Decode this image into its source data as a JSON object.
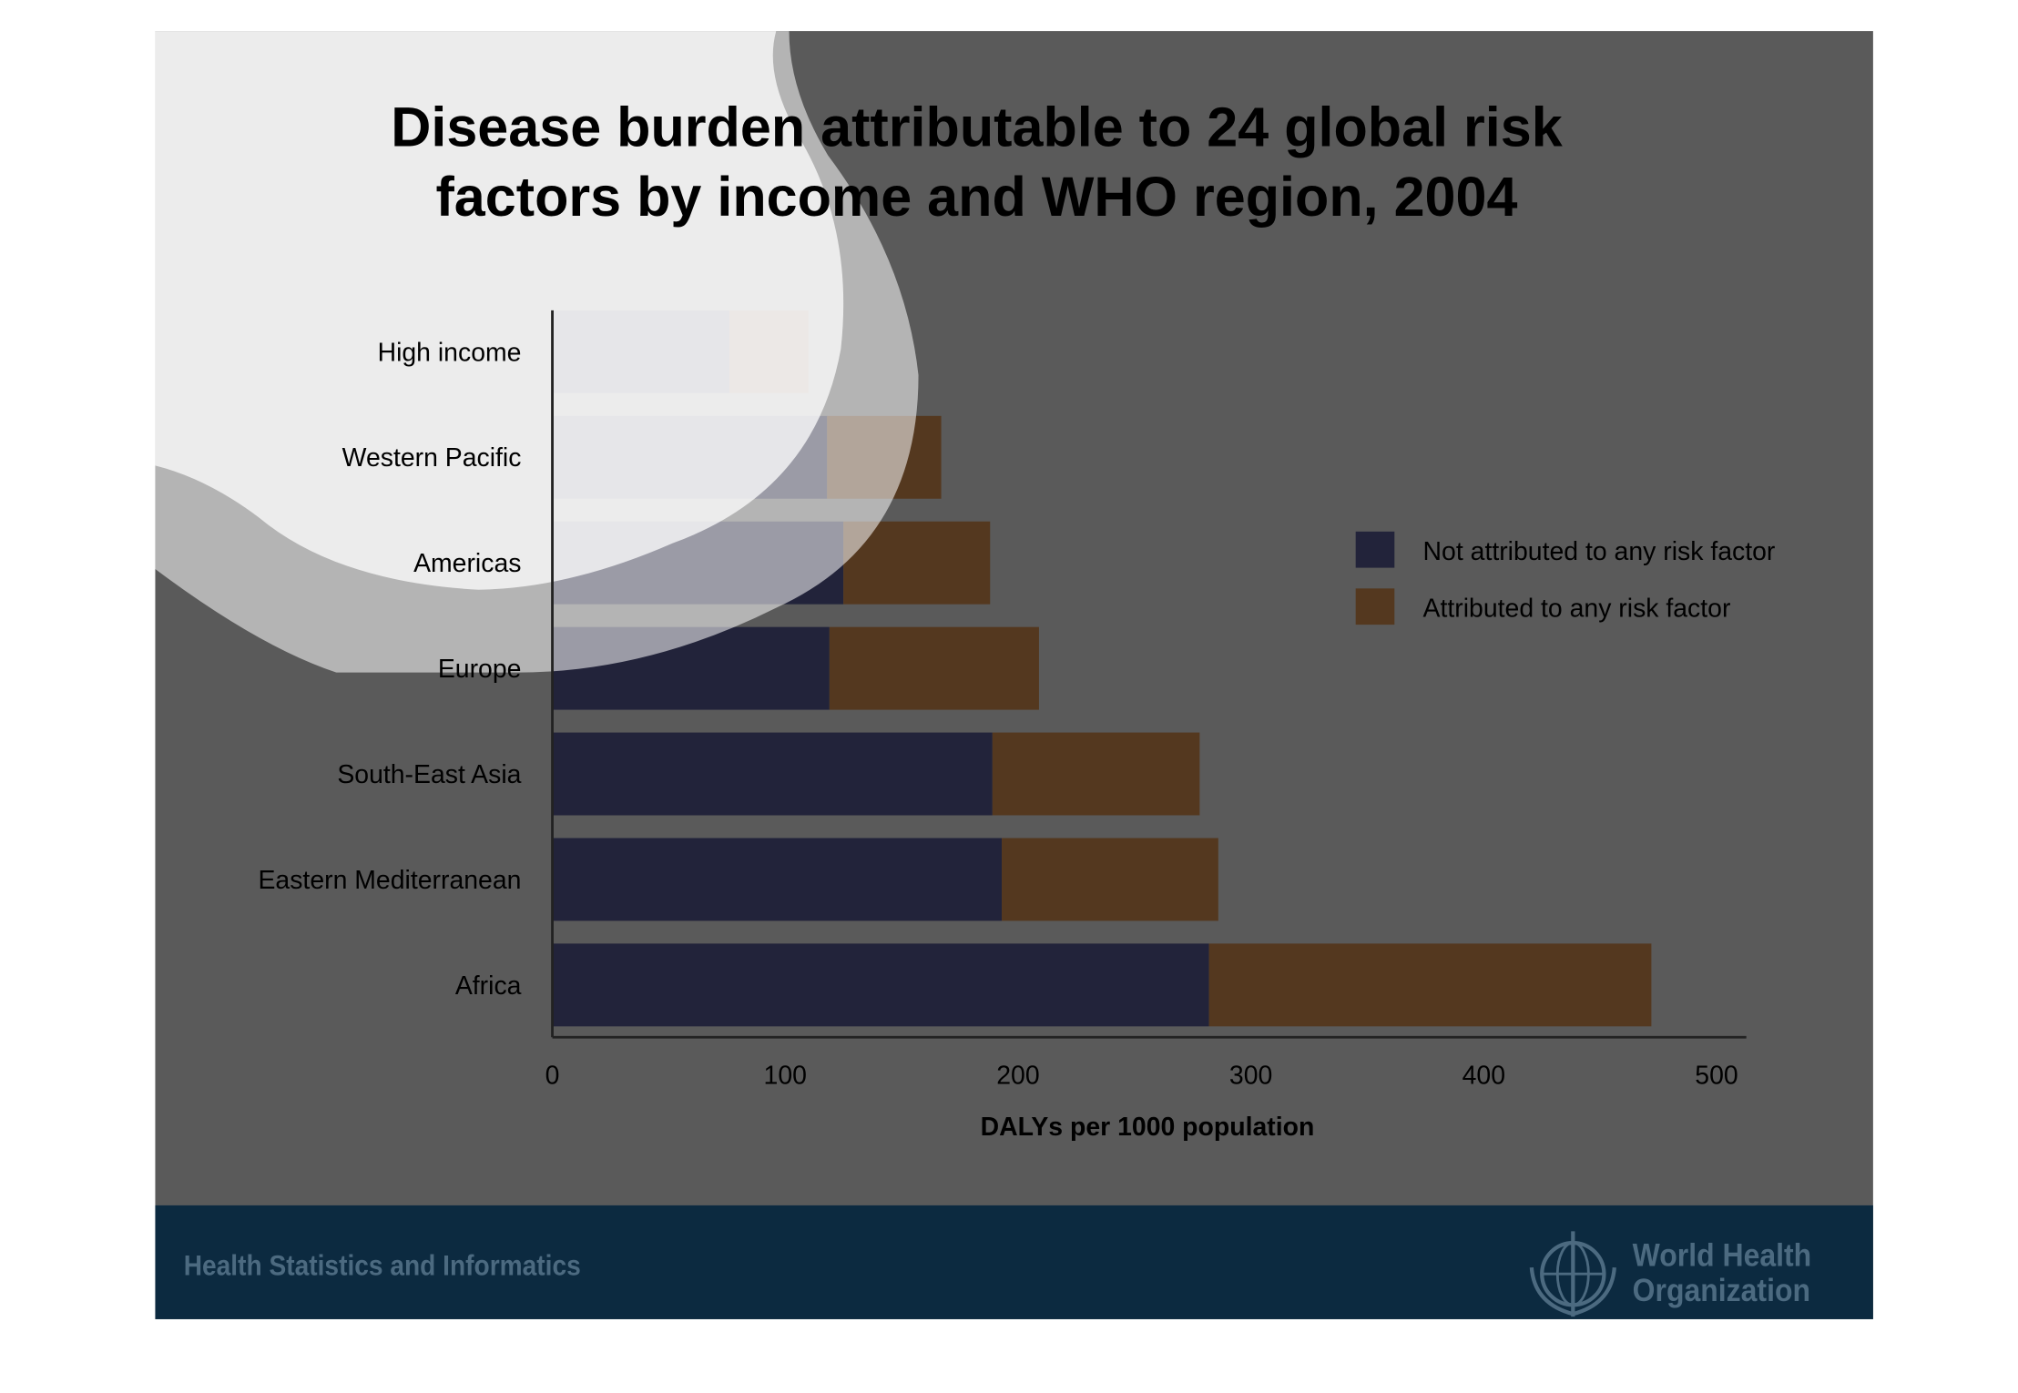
{
  "chart_data": {
    "type": "bar",
    "orientation": "horizontal",
    "stacked": true,
    "title": "Disease burden attributable to 24 global risk factors by income and WHO region, 2004",
    "title_lines": [
      "Disease burden attributable to 24 global risk",
      "factors by income and WHO region, 2004"
    ],
    "categories": [
      "High income",
      "Western Pacific",
      "Americas",
      "Europe",
      "South-East Asia",
      "Eastern Mediterranean",
      "Africa"
    ],
    "series": [
      {
        "name": "Not attributed to any risk factor",
        "color": "#22233a",
        "values": [
          76,
          118,
          125,
          119,
          189,
          193,
          282
        ]
      },
      {
        "name": "Attributed to any risk factor",
        "color": "#54381f",
        "values": [
          34,
          49,
          63,
          90,
          89,
          93,
          190
        ]
      }
    ],
    "xlabel": "DALYs per 1000 population",
    "ylabel": "",
    "xlim": [
      0,
      510
    ],
    "xticks": [
      "0",
      "100",
      "200",
      "300",
      "400",
      "500"
    ],
    "legend_position": "right",
    "grid": false
  },
  "footer": {
    "text": "Health Statistics and Informatics",
    "org_line1": "World Health",
    "org_line2": "Organization",
    "logo_icon": "who-emblem-icon"
  }
}
